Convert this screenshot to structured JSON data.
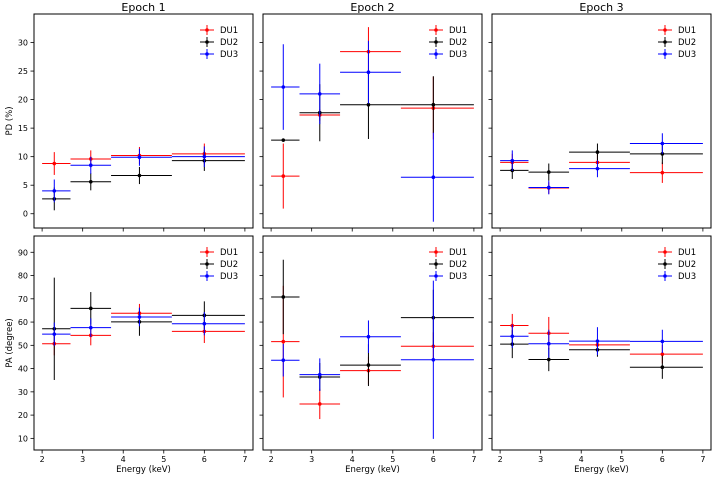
{
  "figure": {
    "colors": {
      "DU1": "#ff0000",
      "DU2": "#000000",
      "DU3": "#0000ff"
    }
  },
  "chart_data": [
    {
      "type": "scatter",
      "title": "Epoch 1",
      "xlabel": "",
      "ylabel": "PD (%)",
      "xlim": [
        1.8,
        7.2
      ],
      "ylim": [
        -2.5,
        35
      ],
      "xticks": [
        "2",
        "3",
        "4",
        "5",
        "6",
        "7"
      ],
      "yticks": [
        "0",
        "5",
        "10",
        "15",
        "20",
        "25",
        "30"
      ],
      "legend": {
        "position": "top-right",
        "labels": [
          "DU1",
          "DU2",
          "DU3"
        ]
      },
      "series": [
        {
          "name": "DU1",
          "points": [
            {
              "x": 2.3,
              "xlo": 2.0,
              "xhi": 2.7,
              "y": 8.8,
              "yerr": 2.0
            },
            {
              "x": 3.2,
              "xlo": 2.7,
              "xhi": 3.7,
              "y": 9.6,
              "yerr": 1.5
            },
            {
              "x": 4.4,
              "xlo": 3.7,
              "xhi": 5.2,
              "y": 10.2,
              "yerr": 1.5
            },
            {
              "x": 6.0,
              "xlo": 5.2,
              "xhi": 7.0,
              "y": 10.5,
              "yerr": 1.8
            }
          ]
        },
        {
          "name": "DU2",
          "points": [
            {
              "x": 2.3,
              "xlo": 2.0,
              "xhi": 2.7,
              "y": 2.6,
              "yerr": 2.0
            },
            {
              "x": 3.2,
              "xlo": 2.7,
              "xhi": 3.7,
              "y": 5.6,
              "yerr": 1.5
            },
            {
              "x": 4.4,
              "xlo": 3.7,
              "xhi": 5.2,
              "y": 6.7,
              "yerr": 1.5
            },
            {
              "x": 6.0,
              "xlo": 5.2,
              "xhi": 7.0,
              "y": 9.3,
              "yerr": 1.8
            }
          ]
        },
        {
          "name": "DU3",
          "points": [
            {
              "x": 2.3,
              "xlo": 2.0,
              "xhi": 2.7,
              "y": 4.0,
              "yerr": 2.0
            },
            {
              "x": 3.2,
              "xlo": 2.7,
              "xhi": 3.7,
              "y": 8.5,
              "yerr": 1.5
            },
            {
              "x": 4.4,
              "xlo": 3.7,
              "xhi": 5.2,
              "y": 9.9,
              "yerr": 1.5
            },
            {
              "x": 6.0,
              "xlo": 5.2,
              "xhi": 7.0,
              "y": 10.0,
              "yerr": 1.8
            }
          ]
        }
      ]
    },
    {
      "type": "scatter",
      "title": "Epoch 2",
      "xlabel": "",
      "ylabel": "",
      "xlim": [
        1.8,
        7.2
      ],
      "ylim": [
        -2.5,
        35
      ],
      "xticks": [
        "2",
        "3",
        "4",
        "5",
        "6",
        "7"
      ],
      "yticks": [],
      "legend": {
        "position": "top-right",
        "labels": [
          "DU1",
          "DU2",
          "DU3"
        ]
      },
      "series": [
        {
          "name": "DU1",
          "points": [
            {
              "x": 2.3,
              "xlo": 2.0,
              "xhi": 2.7,
              "y": 6.6,
              "yerr": 5.7
            },
            {
              "x": 3.2,
              "xlo": 2.7,
              "xhi": 3.7,
              "y": 17.3,
              "yerr": 1.0
            },
            {
              "x": 4.4,
              "xlo": 3.7,
              "xhi": 5.2,
              "y": 28.4,
              "yerr": 4.3
            },
            {
              "x": 6.0,
              "xlo": 5.2,
              "xhi": 7.0,
              "y": 18.5,
              "yerr": 5.5
            }
          ]
        },
        {
          "name": "DU2",
          "points": [
            {
              "x": 2.3,
              "xlo": 2.0,
              "xhi": 2.7,
              "y": 12.9,
              "yerr": 0.3
            },
            {
              "x": 3.2,
              "xlo": 2.7,
              "xhi": 3.7,
              "y": 17.7,
              "yerr": 5.0
            },
            {
              "x": 4.4,
              "xlo": 3.7,
              "xhi": 5.2,
              "y": 19.1,
              "yerr": 6.0
            },
            {
              "x": 6.0,
              "xlo": 5.2,
              "xhi": 7.0,
              "y": 19.1,
              "yerr": 5.0
            }
          ]
        },
        {
          "name": "DU3",
          "points": [
            {
              "x": 2.3,
              "xlo": 2.0,
              "xhi": 2.7,
              "y": 22.2,
              "yerr": 7.5
            },
            {
              "x": 3.2,
              "xlo": 2.7,
              "xhi": 3.7,
              "y": 21.0,
              "yerr": 5.3
            },
            {
              "x": 4.4,
              "xlo": 3.7,
              "xhi": 5.2,
              "y": 24.8,
              "yerr": 5.5
            },
            {
              "x": 6.0,
              "xlo": 5.2,
              "xhi": 7.0,
              "y": 6.4,
              "yerr": 7.8
            }
          ]
        }
      ]
    },
    {
      "type": "scatter",
      "title": "Epoch 3",
      "xlabel": "",
      "ylabel": "",
      "xlim": [
        1.8,
        7.2
      ],
      "ylim": [
        -2.5,
        35
      ],
      "xticks": [
        "2",
        "3",
        "4",
        "5",
        "6",
        "7"
      ],
      "yticks": [],
      "legend": {
        "position": "top-right",
        "labels": [
          "DU1",
          "DU2",
          "DU3"
        ]
      },
      "series": [
        {
          "name": "DU1",
          "points": [
            {
              "x": 2.3,
              "xlo": 2.0,
              "xhi": 2.7,
              "y": 9.0,
              "yerr": 1.5
            },
            {
              "x": 3.2,
              "xlo": 2.7,
              "xhi": 3.7,
              "y": 4.5,
              "yerr": 1.0
            },
            {
              "x": 4.4,
              "xlo": 3.7,
              "xhi": 5.2,
              "y": 9.0,
              "yerr": 1.5
            },
            {
              "x": 6.0,
              "xlo": 5.2,
              "xhi": 7.0,
              "y": 7.2,
              "yerr": 1.8
            }
          ]
        },
        {
          "name": "DU2",
          "points": [
            {
              "x": 2.3,
              "xlo": 2.0,
              "xhi": 2.7,
              "y": 7.6,
              "yerr": 1.5
            },
            {
              "x": 3.2,
              "xlo": 2.7,
              "xhi": 3.7,
              "y": 7.3,
              "yerr": 1.5
            },
            {
              "x": 4.4,
              "xlo": 3.7,
              "xhi": 5.2,
              "y": 10.8,
              "yerr": 1.5
            },
            {
              "x": 6.0,
              "xlo": 5.2,
              "xhi": 7.0,
              "y": 10.5,
              "yerr": 1.8
            }
          ]
        },
        {
          "name": "DU3",
          "points": [
            {
              "x": 2.3,
              "xlo": 2.0,
              "xhi": 2.7,
              "y": 9.3,
              "yerr": 1.8
            },
            {
              "x": 3.2,
              "xlo": 2.7,
              "xhi": 3.7,
              "y": 4.6,
              "yerr": 1.2
            },
            {
              "x": 4.4,
              "xlo": 3.7,
              "xhi": 5.2,
              "y": 7.9,
              "yerr": 1.5
            },
            {
              "x": 6.0,
              "xlo": 5.2,
              "xhi": 7.0,
              "y": 12.3,
              "yerr": 1.8
            }
          ]
        }
      ]
    },
    {
      "type": "scatter",
      "title": "",
      "xlabel": "Energy (keV)",
      "ylabel": "PA (degree)",
      "xlim": [
        1.8,
        7.2
      ],
      "ylim": [
        5,
        97
      ],
      "xticks": [
        "2",
        "3",
        "4",
        "5",
        "6",
        "7"
      ],
      "yticks": [
        "10",
        "20",
        "30",
        "40",
        "50",
        "60",
        "70",
        "80",
        "90"
      ],
      "legend": {
        "position": "top-right",
        "labels": [
          "DU1",
          "DU2",
          "DU3"
        ]
      },
      "series": [
        {
          "name": "DU1",
          "points": [
            {
              "x": 2.3,
              "xlo": 2.0,
              "xhi": 2.7,
              "y": 50.7,
              "yerr": 5.0
            },
            {
              "x": 3.2,
              "xlo": 2.7,
              "xhi": 3.7,
              "y": 54.3,
              "yerr": 4.3
            },
            {
              "x": 4.4,
              "xlo": 3.7,
              "xhi": 5.2,
              "y": 63.8,
              "yerr": 4.0
            },
            {
              "x": 6.0,
              "xlo": 5.2,
              "xhi": 7.0,
              "y": 56.0,
              "yerr": 5.0
            }
          ]
        },
        {
          "name": "DU2",
          "points": [
            {
              "x": 2.3,
              "xlo": 2.0,
              "xhi": 2.7,
              "y": 57.1,
              "yerr": 22.0
            },
            {
              "x": 3.2,
              "xlo": 2.7,
              "xhi": 3.7,
              "y": 65.9,
              "yerr": 7.0
            },
            {
              "x": 4.4,
              "xlo": 3.7,
              "xhi": 5.2,
              "y": 60.1,
              "yerr": 6.0
            },
            {
              "x": 6.0,
              "xlo": 5.2,
              "xhi": 7.0,
              "y": 62.9,
              "yerr": 6.0
            }
          ]
        },
        {
          "name": "DU3",
          "points": [
            {
              "x": 2.3,
              "xlo": 2.0,
              "xhi": 2.7,
              "y": 54.8,
              "yerr": 5.0
            },
            {
              "x": 3.2,
              "xlo": 2.7,
              "xhi": 3.7,
              "y": 57.6,
              "yerr": 4.0
            },
            {
              "x": 4.4,
              "xlo": 3.7,
              "xhi": 5.2,
              "y": 62.2,
              "yerr": 4.0
            },
            {
              "x": 6.0,
              "xlo": 5.2,
              "xhi": 7.0,
              "y": 59.3,
              "yerr": 5.0
            }
          ]
        }
      ]
    },
    {
      "type": "scatter",
      "title": "",
      "xlabel": "Energy (keV)",
      "ylabel": "",
      "xlim": [
        1.8,
        7.2
      ],
      "ylim": [
        5,
        97
      ],
      "xticks": [
        "2",
        "3",
        "4",
        "5",
        "6",
        "7"
      ],
      "yticks": [],
      "legend": {
        "position": "top-right",
        "labels": [
          "DU1",
          "DU2",
          "DU3"
        ]
      },
      "series": [
        {
          "name": "DU1",
          "points": [
            {
              "x": 2.3,
              "xlo": 2.0,
              "xhi": 2.7,
              "y": 51.6,
              "yerr": 24.0
            },
            {
              "x": 3.2,
              "xlo": 2.7,
              "xhi": 3.7,
              "y": 24.8,
              "yerr": 6.5
            },
            {
              "x": 4.4,
              "xlo": 3.7,
              "xhi": 5.2,
              "y": 39.1,
              "yerr": 6.0
            },
            {
              "x": 6.0,
              "xlo": 5.2,
              "xhi": 7.0,
              "y": 49.6,
              "yerr": 6.0
            }
          ]
        },
        {
          "name": "DU2",
          "points": [
            {
              "x": 2.3,
              "xlo": 2.0,
              "xhi": 2.7,
              "y": 70.8,
              "yerr": 16.0
            },
            {
              "x": 3.2,
              "xlo": 2.7,
              "xhi": 3.7,
              "y": 36.4,
              "yerr": 6.0
            },
            {
              "x": 4.4,
              "xlo": 3.7,
              "xhi": 5.2,
              "y": 41.5,
              "yerr": 9.0
            },
            {
              "x": 6.0,
              "xlo": 5.2,
              "xhi": 7.0,
              "y": 61.9,
              "yerr": 12.0
            }
          ]
        },
        {
          "name": "DU3",
          "points": [
            {
              "x": 2.3,
              "xlo": 2.0,
              "xhi": 2.7,
              "y": 43.6,
              "yerr": 7.0
            },
            {
              "x": 3.2,
              "xlo": 2.7,
              "xhi": 3.7,
              "y": 37.4,
              "yerr": 7.0
            },
            {
              "x": 4.4,
              "xlo": 3.7,
              "xhi": 5.2,
              "y": 53.7,
              "yerr": 7.0
            },
            {
              "x": 6.0,
              "xlo": 5.2,
              "xhi": 7.0,
              "y": 43.8,
              "yerr": 34.0
            }
          ]
        }
      ]
    },
    {
      "type": "scatter",
      "title": "",
      "xlabel": "Energy (keV)",
      "ylabel": "",
      "xlim": [
        1.8,
        7.2
      ],
      "ylim": [
        5,
        97
      ],
      "xticks": [
        "2",
        "3",
        "4",
        "5",
        "6",
        "7"
      ],
      "yticks": [],
      "legend": {
        "position": "top-right",
        "labels": [
          "DU1",
          "DU2",
          "DU3"
        ]
      },
      "series": [
        {
          "name": "DU1",
          "points": [
            {
              "x": 2.3,
              "xlo": 2.0,
              "xhi": 2.7,
              "y": 58.5,
              "yerr": 5.0
            },
            {
              "x": 3.2,
              "xlo": 2.7,
              "xhi": 3.7,
              "y": 55.2,
              "yerr": 7.0
            },
            {
              "x": 4.4,
              "xlo": 3.7,
              "xhi": 5.2,
              "y": 50.2,
              "yerr": 2.5
            },
            {
              "x": 6.0,
              "xlo": 5.2,
              "xhi": 7.0,
              "y": 46.2,
              "yerr": 4.0
            }
          ]
        },
        {
          "name": "DU2",
          "points": [
            {
              "x": 2.3,
              "xlo": 2.0,
              "xhi": 2.7,
              "y": 50.5,
              "yerr": 6.0
            },
            {
              "x": 3.2,
              "xlo": 2.7,
              "xhi": 3.7,
              "y": 43.9,
              "yerr": 5.0
            },
            {
              "x": 4.4,
              "xlo": 3.7,
              "xhi": 5.2,
              "y": 48.1,
              "yerr": 3.0
            },
            {
              "x": 6.0,
              "xlo": 5.2,
              "xhi": 7.0,
              "y": 40.6,
              "yerr": 5.0
            }
          ]
        },
        {
          "name": "DU3",
          "points": [
            {
              "x": 2.3,
              "xlo": 2.0,
              "xhi": 2.7,
              "y": 53.9,
              "yerr": 5.0
            },
            {
              "x": 3.2,
              "xlo": 2.7,
              "xhi": 3.7,
              "y": 50.7,
              "yerr": 6.0
            },
            {
              "x": 4.4,
              "xlo": 3.7,
              "xhi": 5.2,
              "y": 51.8,
              "yerr": 6.0
            },
            {
              "x": 6.0,
              "xlo": 5.2,
              "xhi": 7.0,
              "y": 51.7,
              "yerr": 5.0
            }
          ]
        }
      ]
    }
  ]
}
